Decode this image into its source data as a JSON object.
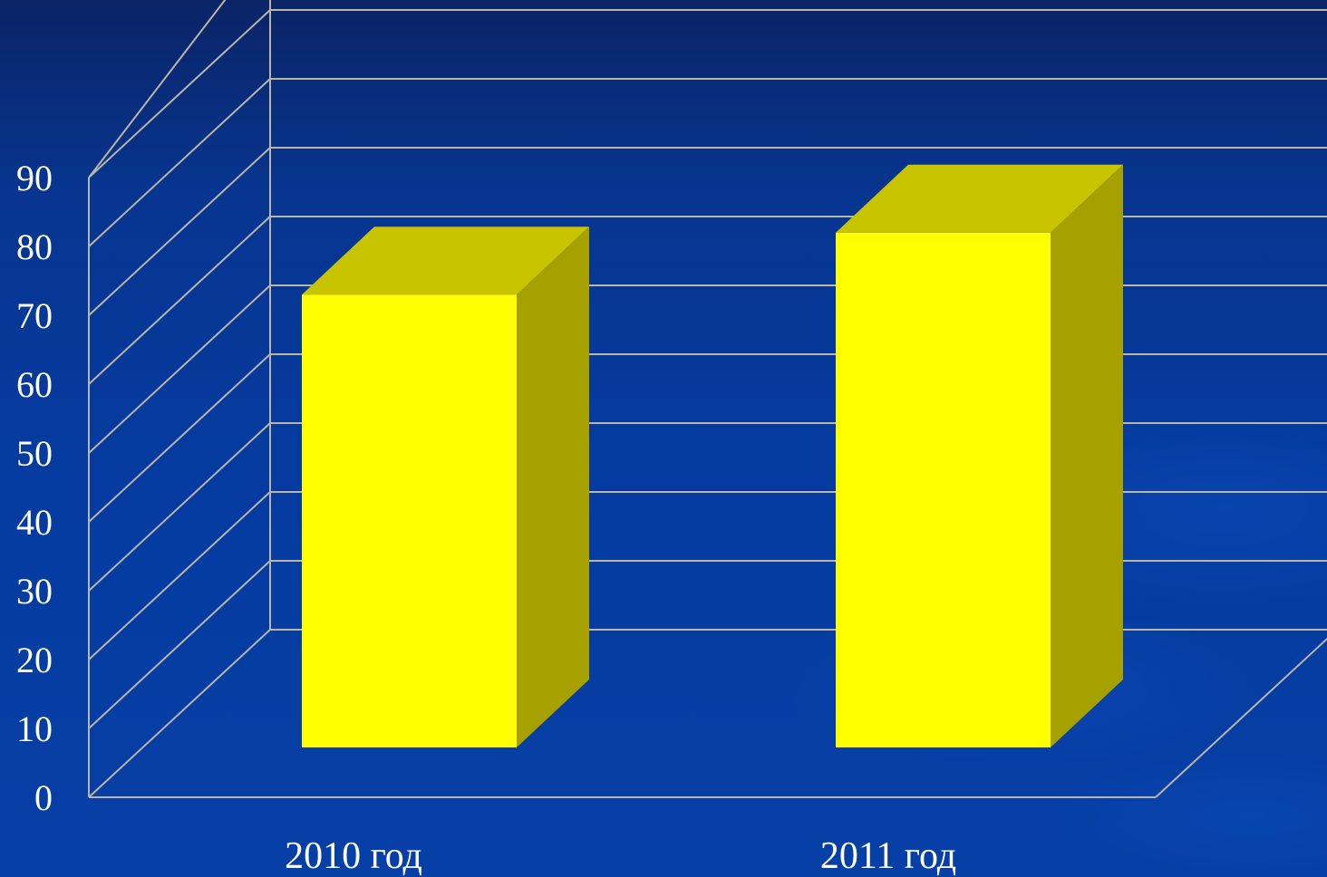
{
  "chart_data": {
    "type": "bar",
    "categories": [
      "2010 год",
      "2011 год"
    ],
    "values": [
      73,
      82
    ],
    "ylim": [
      0,
      90
    ],
    "yticks": [
      "0",
      "10",
      "20",
      "30",
      "40",
      "50",
      "60",
      "70",
      "80",
      "90"
    ],
    "title": "",
    "xlabel": "",
    "ylabel": "",
    "grid": true,
    "style": "3d-column"
  },
  "colors": {
    "background": "#063a98",
    "bar_front": "#ffff00",
    "bar_top": "#c8c400",
    "bar_side": "#a6a000",
    "grid": "#b9b6a8",
    "text": "#ffffff"
  }
}
